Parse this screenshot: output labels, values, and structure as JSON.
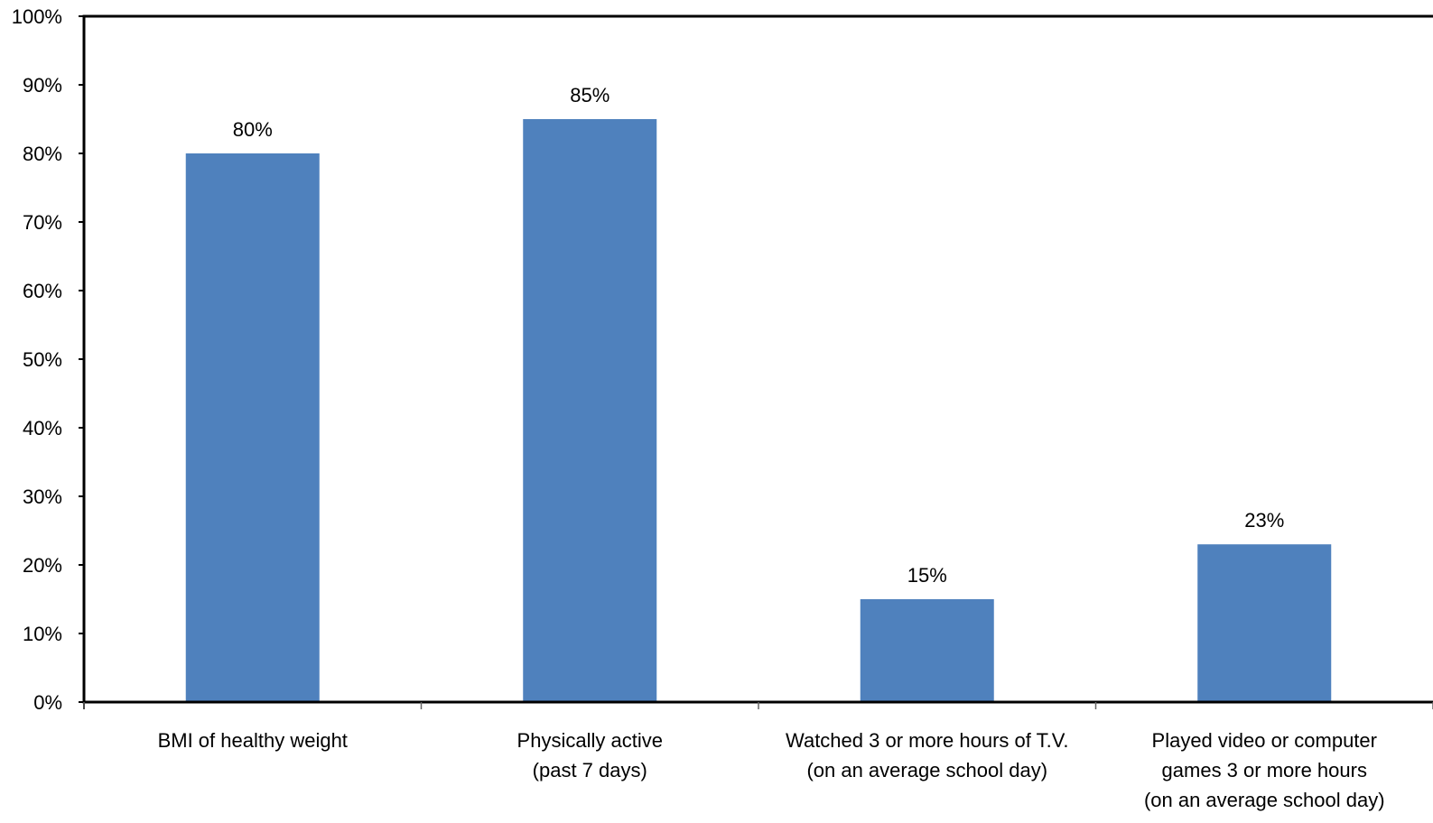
{
  "chart_data": {
    "type": "bar",
    "categories": [
      [
        "BMI of healthy weight"
      ],
      [
        "Physically active",
        "(past 7 days)"
      ],
      [
        "Watched 3 or more hours of T.V.",
        "(on an average school day)"
      ],
      [
        "Played video or computer",
        "games 3 or more hours",
        "(on an average school day)"
      ]
    ],
    "values": [
      80,
      85,
      15,
      23
    ],
    "data_labels": [
      "80%",
      "85%",
      "15%",
      "23%"
    ],
    "ylim": [
      0,
      100
    ],
    "yticks": [
      0,
      10,
      20,
      30,
      40,
      50,
      60,
      70,
      80,
      90,
      100
    ],
    "ytick_labels": [
      "0%",
      "10%",
      "20%",
      "30%",
      "40%",
      "50%",
      "60%",
      "70%",
      "80%",
      "90%",
      "100%"
    ],
    "bar_color": "#4F81BD",
    "grid": false,
    "legend": "none",
    "title": "",
    "xlabel": "",
    "ylabel": ""
  }
}
